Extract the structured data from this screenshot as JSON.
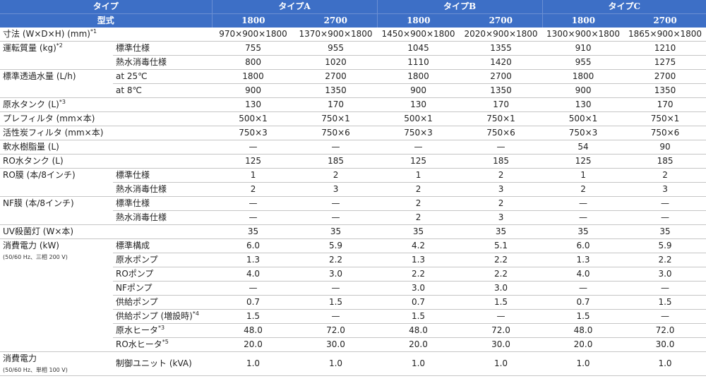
{
  "header": {
    "type_label": "タイプ",
    "model_label": "型式",
    "groups": [
      {
        "name": "タイプA",
        "models": [
          "1800",
          "2700"
        ]
      },
      {
        "name": "タイプB",
        "models": [
          "1800",
          "2700"
        ]
      },
      {
        "name": "タイプC",
        "models": [
          "1800",
          "2700"
        ]
      }
    ]
  },
  "rows": [
    {
      "group": "寸法 (W×D×H) (mm)",
      "note": "*1",
      "sub": "",
      "values": [
        "970×900×1800",
        "1370×900×1800",
        "1450×900×1800",
        "2020×900×1800",
        "1300×900×1800",
        "1865×900×1800"
      ]
    },
    {
      "group": "運転質量 (kg)",
      "note": "*2",
      "sub": "標準仕様",
      "values": [
        "755",
        "955",
        "1045",
        "1355",
        "910",
        "1210"
      ]
    },
    {
      "group": "",
      "note": "",
      "sub": "熱水消毒仕様",
      "values": [
        "800",
        "1020",
        "1110",
        "1420",
        "955",
        "1275"
      ]
    },
    {
      "group": "標準透過水量 (L/h)",
      "note": "",
      "sub": "at 25℃",
      "values": [
        "1800",
        "2700",
        "1800",
        "2700",
        "1800",
        "2700"
      ]
    },
    {
      "group": "",
      "note": "",
      "sub": "at 8℃",
      "values": [
        "900",
        "1350",
        "900",
        "1350",
        "900",
        "1350"
      ]
    },
    {
      "group": "原水タンク (L)",
      "note": "*3",
      "sub": "",
      "values": [
        "130",
        "170",
        "130",
        "170",
        "130",
        "170"
      ]
    },
    {
      "group": "プレフィルタ (mm×本)",
      "note": "",
      "sub": "",
      "values": [
        "500×1",
        "750×1",
        "500×1",
        "750×1",
        "500×1",
        "750×1"
      ]
    },
    {
      "group": "活性炭フィルタ (mm×本)",
      "note": "",
      "sub": "",
      "values": [
        "750×3",
        "750×6",
        "750×3",
        "750×6",
        "750×3",
        "750×6"
      ]
    },
    {
      "group": "軟水樹脂量 (L)",
      "note": "",
      "sub": "",
      "values": [
        "—",
        "—",
        "—",
        "—",
        "54",
        "90"
      ]
    },
    {
      "group": "RO水タンク (L)",
      "note": "",
      "sub": "",
      "values": [
        "125",
        "185",
        "125",
        "185",
        "125",
        "185"
      ]
    },
    {
      "group": "RO膜 (本/8インチ)",
      "note": "",
      "sub": "標準仕様",
      "values": [
        "1",
        "2",
        "1",
        "2",
        "1",
        "2"
      ]
    },
    {
      "group": "",
      "note": "",
      "sub": "熱水消毒仕様",
      "values": [
        "2",
        "3",
        "2",
        "3",
        "2",
        "3"
      ]
    },
    {
      "group": "NF膜 (本/8インチ)",
      "note": "",
      "sub": "標準仕様",
      "values": [
        "—",
        "—",
        "2",
        "2",
        "—",
        "—"
      ]
    },
    {
      "group": "",
      "note": "",
      "sub": "熱水消毒仕様",
      "values": [
        "—",
        "—",
        "2",
        "3",
        "—",
        "—"
      ]
    },
    {
      "group": "UV殺菌灯 (W×本)",
      "note": "",
      "sub": "",
      "values": [
        "35",
        "35",
        "35",
        "35",
        "35",
        "35"
      ]
    },
    {
      "group": "消費電力 (kW)",
      "note": "",
      "sub": "標準構成",
      "values": [
        "6.0",
        "5.9",
        "4.2",
        "5.1",
        "6.0",
        "5.9"
      ]
    },
    {
      "group": "",
      "note": "",
      "sub": "原水ポンプ",
      "values": [
        "1.3",
        "2.2",
        "1.3",
        "2.2",
        "1.3",
        "2.2"
      ]
    },
    {
      "group": "",
      "note": "",
      "sub": "ROポンプ",
      "values": [
        "4.0",
        "3.0",
        "2.2",
        "2.2",
        "4.0",
        "3.0"
      ]
    },
    {
      "group": "",
      "note": "",
      "sub": "NFポンプ",
      "values": [
        "—",
        "—",
        "3.0",
        "3.0",
        "—",
        "—"
      ]
    },
    {
      "group": "",
      "note": "",
      "sub": "供給ポンプ",
      "values": [
        "0.7",
        "1.5",
        "0.7",
        "1.5",
        "0.7",
        "1.5"
      ]
    },
    {
      "group": "",
      "note": "",
      "sub": "供給ポンプ (増設時)",
      "subnote": "*4",
      "values": [
        "1.5",
        "—",
        "1.5",
        "—",
        "1.5",
        "—"
      ]
    },
    {
      "group": "",
      "note": "",
      "sub": "原水ヒータ",
      "subnote": "*3",
      "values": [
        "48.0",
        "72.0",
        "48.0",
        "72.0",
        "48.0",
        "72.0"
      ]
    },
    {
      "group": "",
      "note": "",
      "sub": "RO水ヒータ",
      "subnote": "*5",
      "values": [
        "20.0",
        "30.0",
        "20.0",
        "30.0",
        "20.0",
        "30.0"
      ]
    },
    {
      "group": "消費電力",
      "note": "",
      "sub": "制御ユニット (kVA)",
      "values": [
        "1.0",
        "1.0",
        "1.0",
        "1.0",
        "1.0",
        "1.0"
      ]
    }
  ],
  "small_notes": {
    "power_200": "(50/60 Hz、三相 200 V)",
    "power_100": "(50/60 Hz、単相 100 V)"
  }
}
